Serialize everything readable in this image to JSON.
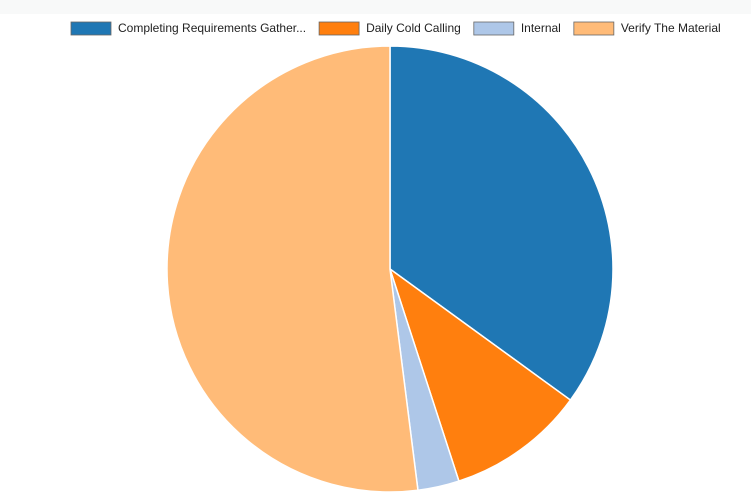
{
  "chart_data": {
    "type": "pie",
    "categories": [
      "Completing Requirements Gather...",
      "Daily Cold Calling",
      "Internal",
      "Verify The Material"
    ],
    "values": [
      35,
      10,
      3,
      52
    ],
    "colors": [
      "#1f77b4",
      "#ff7f0e",
      "#aec7e8",
      "#ffbb78"
    ],
    "legend": "top"
  }
}
